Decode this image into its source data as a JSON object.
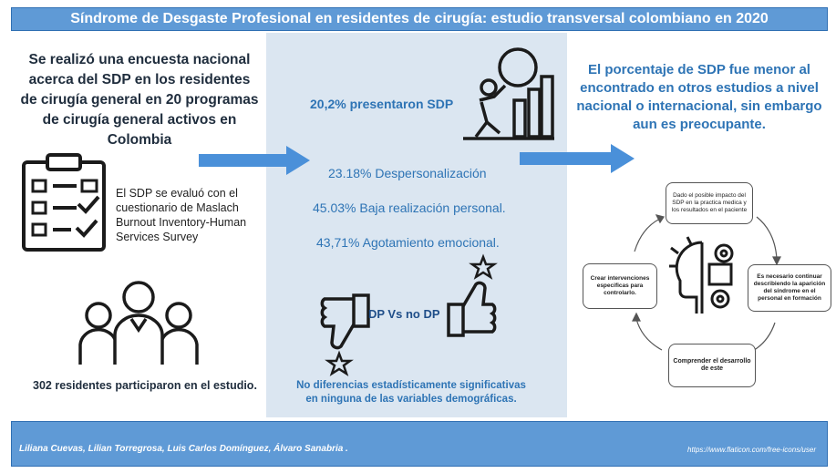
{
  "header": {
    "title": "Síndrome de Desgaste Profesional en residentes de cirugía: estudio transversal colombiano en 2020"
  },
  "left": {
    "intro": "Se realizó una encuesta nacional acerca del SDP en los residentes de cirugía general en 20 programas de cirugía general activos en Colombia",
    "maslach": "El SDP  se evaluó con el cuestionario de Maslach Burnout Inventory-Human Services Survey",
    "participants": "302 residentes participaron  en el estudio."
  },
  "middle": {
    "main_stat": "20,2% presentaron SDP",
    "stats": [
      "23.18% Despersonalización",
      "45.03%  Baja realización personal.",
      "43,71% Agotamiento emocional."
    ],
    "dp_label": "DP Vs no DP",
    "no_diff": "No diferencias estadísticamente significativas en ninguna de las variables  demográficas."
  },
  "right": {
    "conclusion": "El porcentaje de SDP fue menor al encontrado en otros estudios a nivel nacional o internacional, sin embargo aun es preocupante.",
    "cycle": {
      "top": "Dado el posible impacto del SDP en la practica medica y los resultados en el paciente",
      "right": "Es necesario continuar describiendo la aparición del síndrome en el personal en formación",
      "bottom": "Comprender el desarrollo de este",
      "left": "Crear intervenciones especificas para controlarlo."
    }
  },
  "footer": {
    "authors": "Liliana Cuevas, Lilian Torregrosa, Luis Carlos Domínguez, Álvaro Sanabria .",
    "url": "https://www.flaticon.com/free-icons/user"
  },
  "colors": {
    "banner": "#5f9ad6",
    "middle_panel": "#dbe6f1",
    "accent_text": "#2e74b5",
    "arrow": "#4a90d9"
  },
  "icons": [
    "clipboard-checklist-icon",
    "people-group-icon",
    "burnout-person-icon",
    "thumbs-down-icon",
    "thumbs-up-icon",
    "head-gears-icon",
    "right-arrow-icon"
  ]
}
